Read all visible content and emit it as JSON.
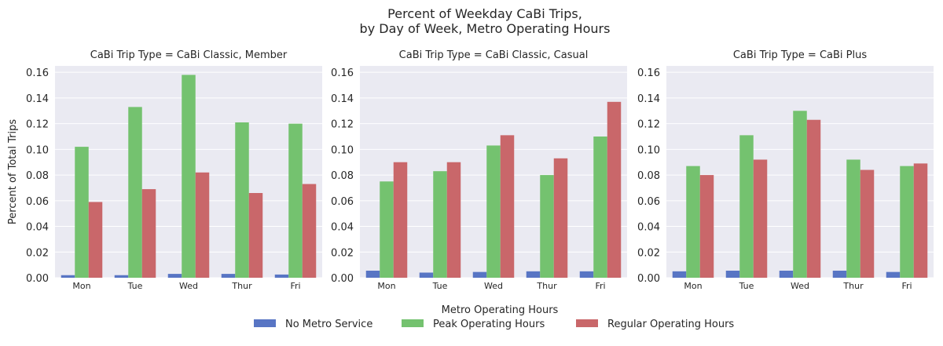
{
  "title_line1": "Percent of Weekday CaBi Trips,",
  "title_line2": "by Day of Week, Metro Operating Hours",
  "ylabel": "Percent of Total Trips",
  "legend": {
    "title": "Metro Operating Hours",
    "entries": [
      "No Metro Service",
      "Peak Operating Hours",
      "Regular Operating Hours"
    ]
  },
  "colors": {
    "No Metro Service": "#5875c4",
    "Peak Operating Hours": "#74c26f",
    "Regular Operating Hours": "#c9676a",
    "plot_bg": "#eaeaf2",
    "grid": "#ffffff"
  },
  "chart_data": [
    {
      "type": "bar",
      "title": "CaBi Trip Type = CaBi Classic, Member",
      "categories": [
        "Mon",
        "Tue",
        "Wed",
        "Thur",
        "Fri"
      ],
      "ylim": [
        0,
        0.165
      ],
      "yticks": [
        "0.00",
        "0.02",
        "0.04",
        "0.06",
        "0.08",
        "0.10",
        "0.12",
        "0.14",
        "0.16"
      ],
      "series": [
        {
          "name": "No Metro Service",
          "values": [
            0.002,
            0.002,
            0.003,
            0.003,
            0.0025
          ]
        },
        {
          "name": "Peak Operating Hours",
          "values": [
            0.102,
            0.133,
            0.158,
            0.121,
            0.12
          ]
        },
        {
          "name": "Regular Operating Hours",
          "values": [
            0.059,
            0.069,
            0.082,
            0.066,
            0.073
          ]
        }
      ]
    },
    {
      "type": "bar",
      "title": "CaBi Trip Type = CaBi Classic, Casual",
      "categories": [
        "Mon",
        "Tue",
        "Wed",
        "Thur",
        "Fri"
      ],
      "ylim": [
        0,
        0.165
      ],
      "yticks": [
        "0.00",
        "0.02",
        "0.04",
        "0.06",
        "0.08",
        "0.10",
        "0.12",
        "0.14",
        "0.16"
      ],
      "series": [
        {
          "name": "No Metro Service",
          "values": [
            0.0055,
            0.004,
            0.0045,
            0.005,
            0.005
          ]
        },
        {
          "name": "Peak Operating Hours",
          "values": [
            0.075,
            0.083,
            0.103,
            0.08,
            0.11
          ]
        },
        {
          "name": "Regular Operating Hours",
          "values": [
            0.09,
            0.09,
            0.111,
            0.093,
            0.137
          ]
        }
      ]
    },
    {
      "type": "bar",
      "title": "CaBi Trip Type = CaBi Plus",
      "categories": [
        "Mon",
        "Tue",
        "Wed",
        "Thur",
        "Fri"
      ],
      "ylim": [
        0,
        0.165
      ],
      "yticks": [
        "0.00",
        "0.02",
        "0.04",
        "0.06",
        "0.08",
        "0.10",
        "0.12",
        "0.14",
        "0.16"
      ],
      "series": [
        {
          "name": "No Metro Service",
          "values": [
            0.005,
            0.0055,
            0.0055,
            0.0055,
            0.0045
          ]
        },
        {
          "name": "Peak Operating Hours",
          "values": [
            0.087,
            0.111,
            0.13,
            0.092,
            0.087
          ]
        },
        {
          "name": "Regular Operating Hours",
          "values": [
            0.08,
            0.092,
            0.123,
            0.084,
            0.089
          ]
        }
      ]
    }
  ]
}
